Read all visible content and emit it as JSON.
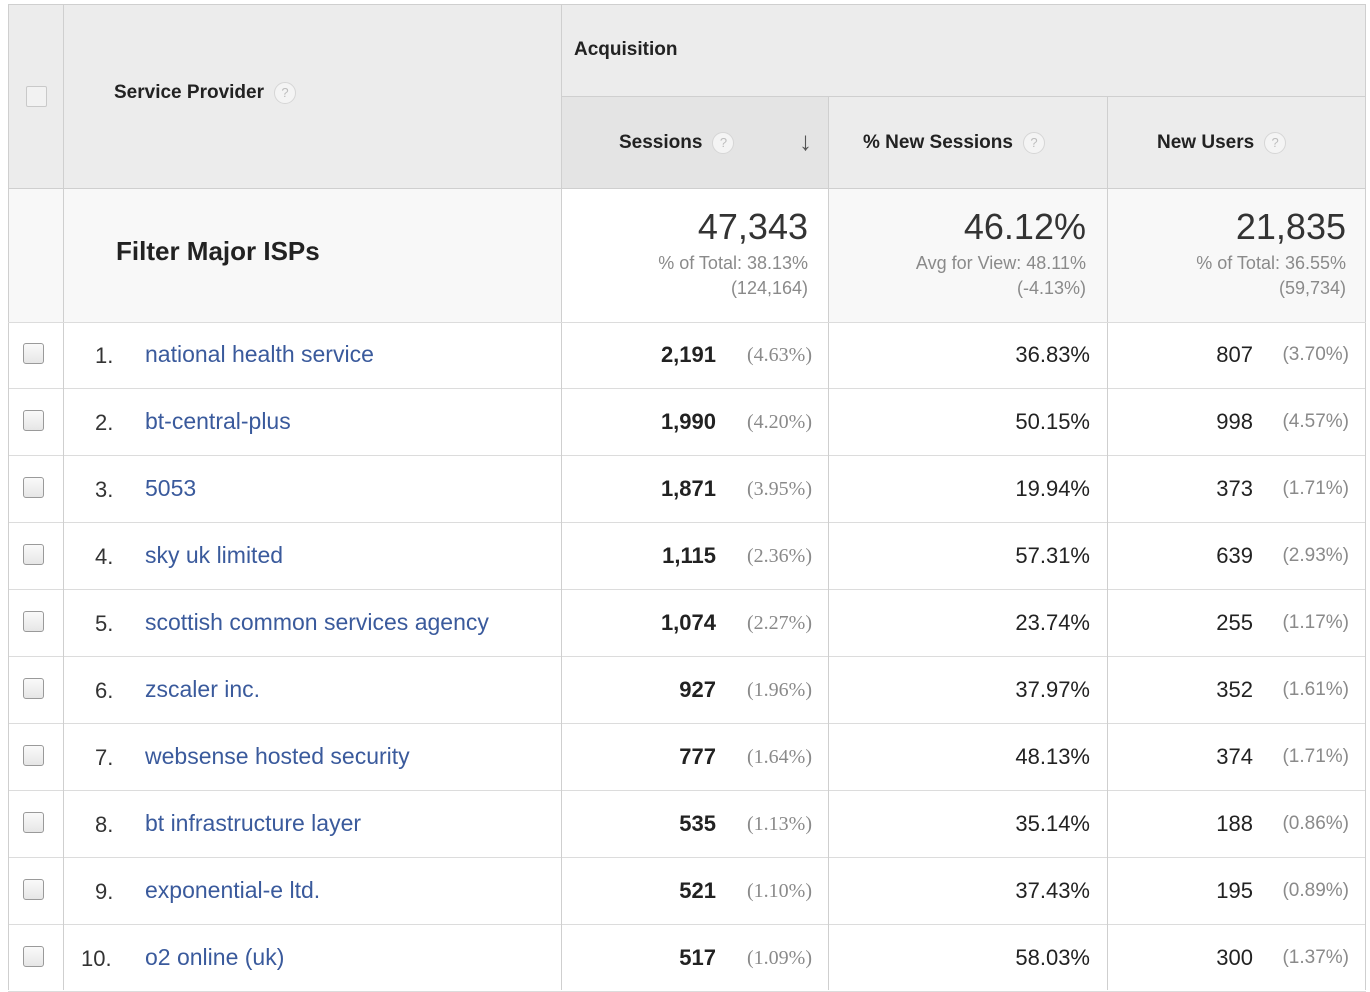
{
  "header": {
    "group_label": "Acquisition",
    "dimension_label": "Service Provider",
    "help_glyph": "?",
    "sort_arrow": "↓",
    "columns": [
      {
        "label": "Sessions"
      },
      {
        "label": "% New Sessions"
      },
      {
        "label": "New Users"
      }
    ]
  },
  "summary": {
    "segment_label": "Filter Major ISPs",
    "sessions": {
      "value": "47,343",
      "line1": "% of Total: 38.13%",
      "line2": "(124,164)"
    },
    "new_sessions": {
      "value": "46.12%",
      "line1": "Avg for View: 48.11%",
      "line2": "(-4.13%)"
    },
    "new_users": {
      "value": "21,835",
      "line1": "% of Total: 36.55%",
      "line2": "(59,734)"
    }
  },
  "rows": [
    {
      "num": "1.",
      "name": "national health service",
      "sessions": "2,191",
      "sessions_pct": "(4.63%)",
      "new_sessions": "36.83%",
      "new_users": "807",
      "new_users_pct": "(3.70%)"
    },
    {
      "num": "2.",
      "name": "bt-central-plus",
      "sessions": "1,990",
      "sessions_pct": "(4.20%)",
      "new_sessions": "50.15%",
      "new_users": "998",
      "new_users_pct": "(4.57%)"
    },
    {
      "num": "3.",
      "name": "5053",
      "sessions": "1,871",
      "sessions_pct": "(3.95%)",
      "new_sessions": "19.94%",
      "new_users": "373",
      "new_users_pct": "(1.71%)"
    },
    {
      "num": "4.",
      "name": "sky uk limited",
      "sessions": "1,115",
      "sessions_pct": "(2.36%)",
      "new_sessions": "57.31%",
      "new_users": "639",
      "new_users_pct": "(2.93%)"
    },
    {
      "num": "5.",
      "name": "scottish common services agency",
      "sessions": "1,074",
      "sessions_pct": "(2.27%)",
      "new_sessions": "23.74%",
      "new_users": "255",
      "new_users_pct": "(1.17%)"
    },
    {
      "num": "6.",
      "name": "zscaler inc.",
      "sessions": "927",
      "sessions_pct": "(1.96%)",
      "new_sessions": "37.97%",
      "new_users": "352",
      "new_users_pct": "(1.61%)"
    },
    {
      "num": "7.",
      "name": "websense hosted security",
      "sessions": "777",
      "sessions_pct": "(1.64%)",
      "new_sessions": "48.13%",
      "new_users": "374",
      "new_users_pct": "(1.71%)"
    },
    {
      "num": "8.",
      "name": "bt infrastructure layer",
      "sessions": "535",
      "sessions_pct": "(1.13%)",
      "new_sessions": "35.14%",
      "new_users": "188",
      "new_users_pct": "(0.86%)"
    },
    {
      "num": "9.",
      "name": "exponential-e ltd.",
      "sessions": "521",
      "sessions_pct": "(1.10%)",
      "new_sessions": "37.43%",
      "new_users": "195",
      "new_users_pct": "(0.89%)"
    },
    {
      "num": "10.",
      "name": "o2 online (uk)",
      "sessions": "517",
      "sessions_pct": "(1.09%)",
      "new_sessions": "58.03%",
      "new_users": "300",
      "new_users_pct": "(1.37%)"
    }
  ],
  "colors": {
    "link": "#3a5a9c",
    "header_bg": "#ececec",
    "summary_bg": "#f8f8f8",
    "sorted_col_bg": "#f1f1f1"
  }
}
